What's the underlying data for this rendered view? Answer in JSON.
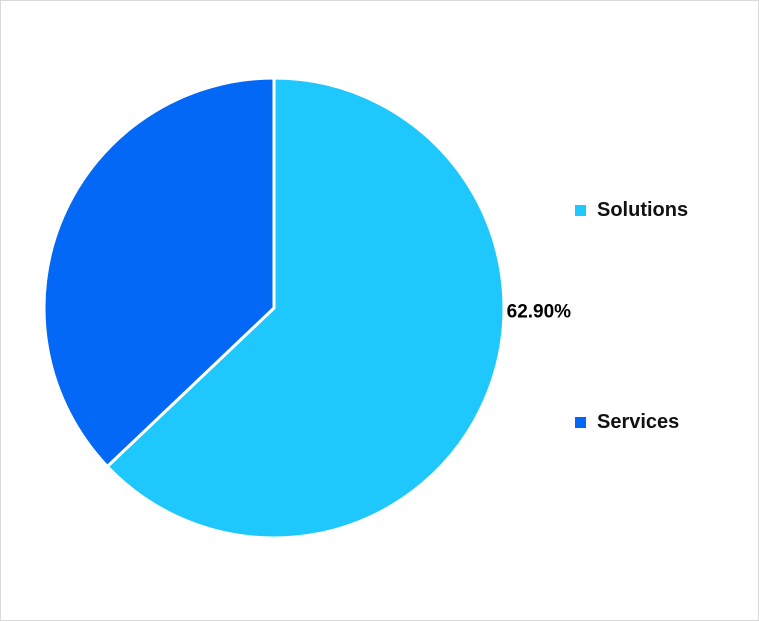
{
  "chart_data": {
    "type": "pie",
    "categories": [
      "Solutions",
      "Services"
    ],
    "values": [
      62.9,
      37.1
    ],
    "data_labels": [
      "62.90%",
      ""
    ],
    "colors": [
      "#1ec8fc",
      "#0468f6"
    ],
    "legend_position": "right",
    "start_angle_deg": 0,
    "direction": "clockwise"
  }
}
